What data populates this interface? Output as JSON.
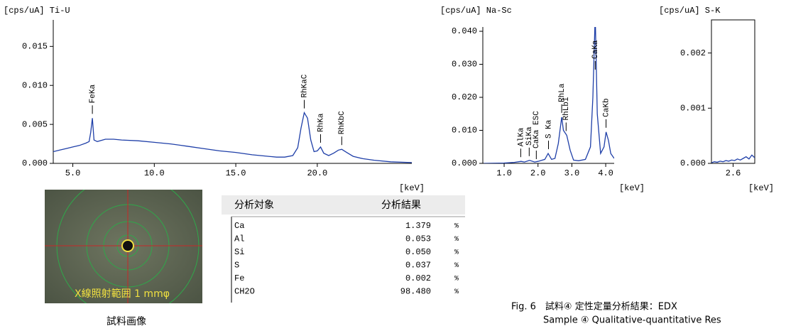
{
  "chart_data": [
    {
      "type": "line",
      "title": "[cps/uA] Ti-U",
      "x_label": "[keV]",
      "color": "#1f3fa8",
      "x": [
        3.8,
        4.2,
        4.6,
        5.0,
        5.4,
        5.8,
        6.0,
        6.1,
        6.2,
        6.3,
        6.5,
        7.0,
        7.5,
        8.0,
        9.0,
        10.0,
        11.0,
        12.0,
        13.0,
        14.0,
        15.0,
        16.0,
        17.0,
        17.5,
        18.0,
        18.5,
        18.8,
        19.0,
        19.2,
        19.4,
        19.6,
        19.8,
        20.0,
        20.2,
        20.4,
        20.7,
        21.0,
        21.3,
        21.5,
        21.8,
        22.2,
        22.8,
        23.5,
        24.5,
        25.8
      ],
      "values": [
        0.0015,
        0.0017,
        0.0019,
        0.0021,
        0.0023,
        0.0026,
        0.0028,
        0.004,
        0.0058,
        0.003,
        0.0028,
        0.0031,
        0.0031,
        0.003,
        0.0029,
        0.0027,
        0.0025,
        0.0022,
        0.0019,
        0.0016,
        0.0014,
        0.0011,
        0.0009,
        0.0008,
        0.0008,
        0.001,
        0.002,
        0.0045,
        0.0065,
        0.0058,
        0.003,
        0.0015,
        0.0016,
        0.0021,
        0.0013,
        0.001,
        0.0013,
        0.0017,
        0.0018,
        0.0014,
        0.0009,
        0.0006,
        0.0004,
        0.0002,
        0.0001
      ],
      "xlim": [
        3.8,
        25.8
      ],
      "ylim": [
        0,
        0.0184
      ],
      "xticks": [
        {
          "value": 5,
          "label": "5.0"
        },
        {
          "value": 10,
          "label": "10.0"
        },
        {
          "value": 15,
          "label": "15.0"
        },
        {
          "value": 20,
          "label": "20.0"
        }
      ],
      "yticks": [
        {
          "value": 0,
          "label": "0.000"
        },
        0.005,
        {
          "value": 0.01,
          "label": "0.010"
        },
        0.015
      ],
      "annotations": [
        {
          "label": "FeKa",
          "x": 6.2
        },
        {
          "label": "RhKaC",
          "x": 19.2
        },
        {
          "label": "RhKa",
          "x": 20.2
        },
        {
          "label": "RhKbC",
          "x": 21.5
        }
      ]
    },
    {
      "type": "line",
      "title": "[cps/uA] Na-Sc",
      "x_label": "[keV]",
      "color": "#1f3fa8",
      "x": [
        0.4,
        1.0,
        1.3,
        1.5,
        1.6,
        1.75,
        1.9,
        2.0,
        2.2,
        2.3,
        2.4,
        2.5,
        2.6,
        2.7,
        2.75,
        2.85,
        2.95,
        3.05,
        3.2,
        3.4,
        3.55,
        3.62,
        3.69,
        3.75,
        3.85,
        3.95,
        4.01,
        4.08,
        4.15,
        4.25
      ],
      "values": [
        0,
        0.0001,
        0.0003,
        0.0006,
        0.0004,
        0.0009,
        0.0004,
        0.0006,
        0.0012,
        0.003,
        0.0012,
        0.0015,
        0.006,
        0.014,
        0.01,
        0.0085,
        0.004,
        0.001,
        0.0008,
        0.0012,
        0.005,
        0.02,
        0.045,
        0.015,
        0.003,
        0.005,
        0.0095,
        0.007,
        0.003,
        0.0015
      ],
      "xlim": [
        0.37,
        4.25
      ],
      "ylim": [
        0,
        0.0413
      ],
      "xticks": [
        {
          "value": 1,
          "label": "1.0"
        },
        {
          "value": 2,
          "label": "2.0"
        },
        {
          "value": 3,
          "label": "3.0"
        },
        {
          "value": 4,
          "label": "4.0"
        }
      ],
      "yticks": [
        {
          "value": 0,
          "label": "0.000"
        },
        {
          "value": 0.01,
          "label": "0.010"
        },
        {
          "value": 0.02,
          "label": "0.020"
        },
        {
          "value": 0.03,
          "label": "0.030"
        },
        {
          "value": 0.04,
          "label": "0.040"
        }
      ],
      "annotations": [
        {
          "label": "AlKa",
          "x": 1.49
        },
        {
          "label": "SiKa",
          "x": 1.74
        },
        {
          "label": "CaKa ESC",
          "x": 1.95
        },
        {
          "label": "S Ka",
          "x": 2.31
        },
        {
          "label": "RhLa",
          "x": 2.7
        },
        {
          "label": "RhLb1",
          "x": 2.83
        },
        {
          "label": "CaKa",
          "x": 3.69
        },
        {
          "label": "CaKb",
          "x": 4.01
        }
      ]
    },
    {
      "type": "line",
      "title": "[cps/uA] S-K",
      "x_label": "[keV]",
      "color": "#1f3fa8",
      "x": [
        2.45,
        2.47,
        2.49,
        2.51,
        2.53,
        2.55,
        2.57,
        2.59,
        2.61,
        2.63,
        2.65,
        2.67,
        2.69,
        2.71,
        2.73,
        2.75
      ],
      "values": [
        1e-05,
        3e-05,
        2e-05,
        4e-05,
        3e-05,
        5e-05,
        4e-05,
        6e-05,
        5e-05,
        8e-05,
        6e-05,
        9e-05,
        0.00012,
        8e-05,
        0.00015,
        0.0001
      ],
      "xlim": [
        2.45,
        2.75
      ],
      "ylim": [
        0,
        0.0026
      ],
      "xticks": [
        2.6
      ],
      "yticks": [
        {
          "value": 0,
          "label": "0.000"
        },
        0.001,
        0.002
      ],
      "annotations": []
    }
  ],
  "photo": {
    "label": "X線照射範囲 1 mmφ",
    "caption": "試料画像"
  },
  "table": {
    "header": [
      "分析対象",
      "分析結果"
    ],
    "rows": [
      [
        "Ca",
        "1.379",
        "%"
      ],
      [
        "Al",
        "0.053",
        "%"
      ],
      [
        "Si",
        "0.050",
        "%"
      ],
      [
        "S",
        "0.037",
        "%"
      ],
      [
        "Fe",
        "0.002",
        "%"
      ],
      [
        "CH2O",
        "98.480",
        "%"
      ]
    ]
  },
  "figure_caption": {
    "line1": "Fig. 6　試料④ 定性定量分析結果：EDX",
    "line2": "Sample ④ Qualitative-quantitative Res"
  }
}
